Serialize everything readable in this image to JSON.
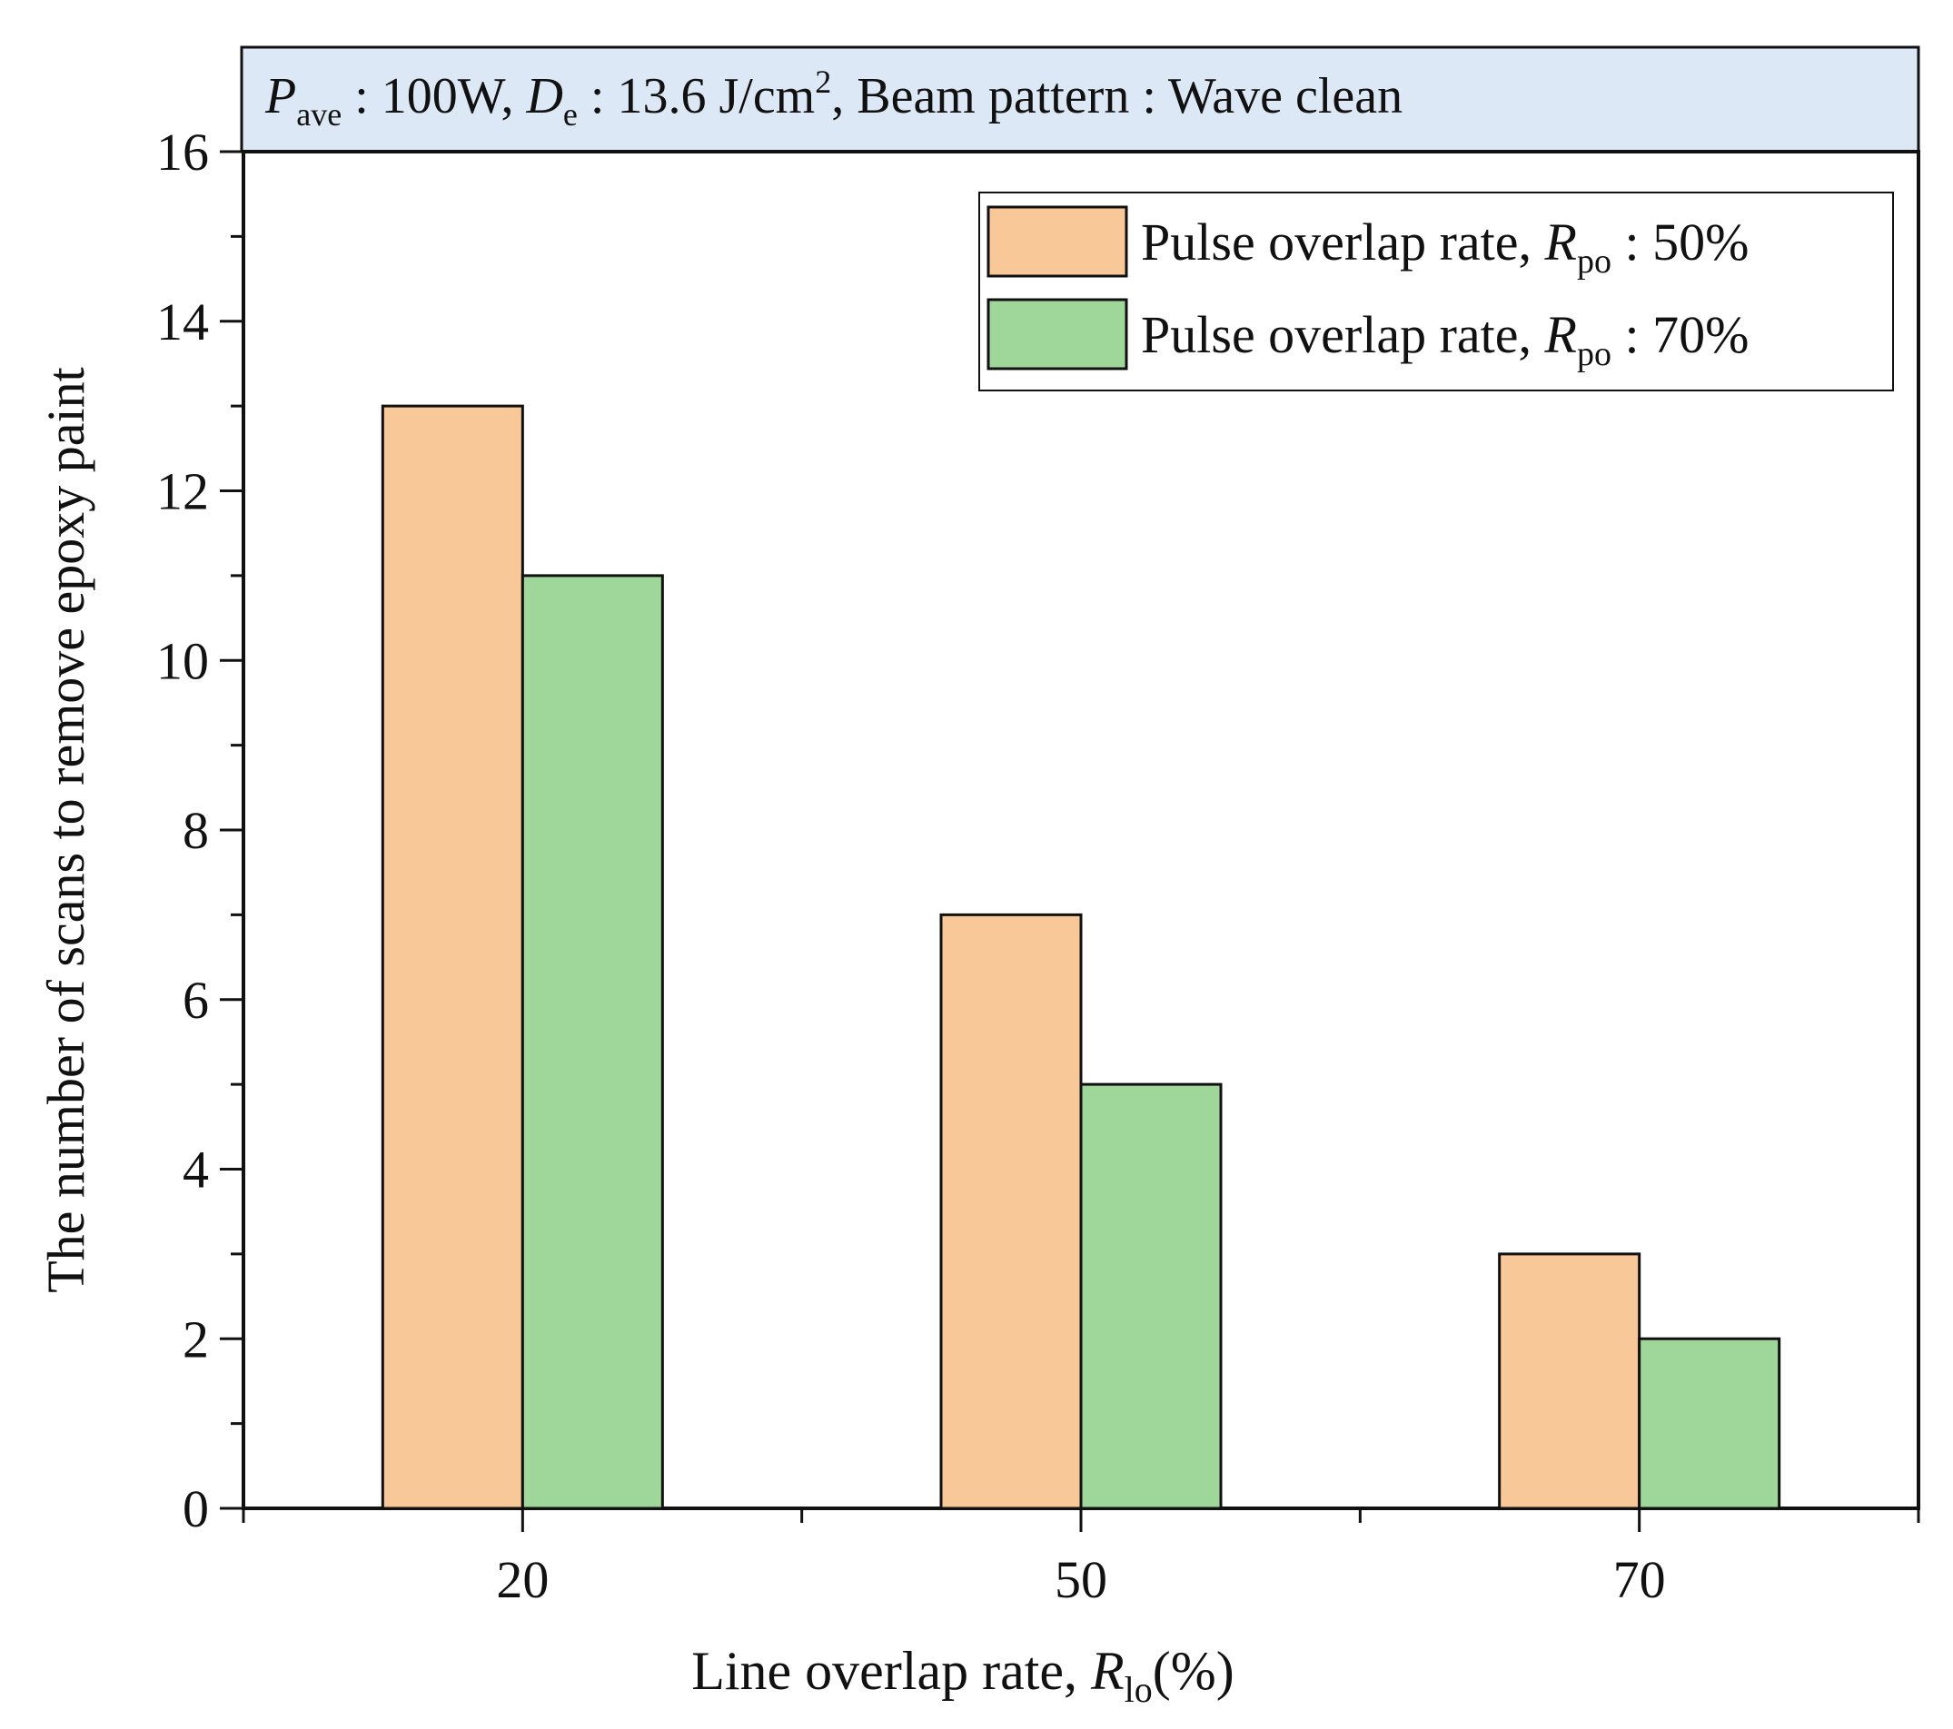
{
  "chart_data": {
    "type": "bar",
    "header": {
      "p_symbol": "P",
      "p_sub": "ave",
      "p_value": " : 100W, ",
      "d_symbol": "D",
      "d_sub": "e",
      "d_value": " : 13.6 J/cm",
      "d_sup": "2",
      "rest": ", Beam pattern : Wave clean"
    },
    "categories": [
      "20",
      "50",
      "70"
    ],
    "series": [
      {
        "name": "Pulse overlap rate, R_po : 50%",
        "label_prefix": "Pulse overlap rate, ",
        "label_symbol": "R",
        "label_sub": "po",
        "label_suffix": " : 50%",
        "values": [
          13,
          7,
          3
        ],
        "color": "#f9c898"
      },
      {
        "name": "Pulse overlap rate, R_po : 70%",
        "label_prefix": "Pulse overlap rate, ",
        "label_symbol": "R",
        "label_sub": "po",
        "label_suffix": " : 70%",
        "values": [
          11,
          5,
          2
        ],
        "color": "#9fd79b"
      }
    ],
    "ylim": [
      0,
      16
    ],
    "yticks": [
      0,
      2,
      4,
      6,
      8,
      10,
      12,
      14,
      16
    ],
    "ylabel": "The number of scans to remove epoxy paint",
    "xlabel": {
      "prefix": "Line overlap rate, ",
      "symbol": "R",
      "sub": "lo",
      "suffix": "(%)"
    },
    "legend_position": "top-right",
    "header_color": "#dce8f5"
  }
}
